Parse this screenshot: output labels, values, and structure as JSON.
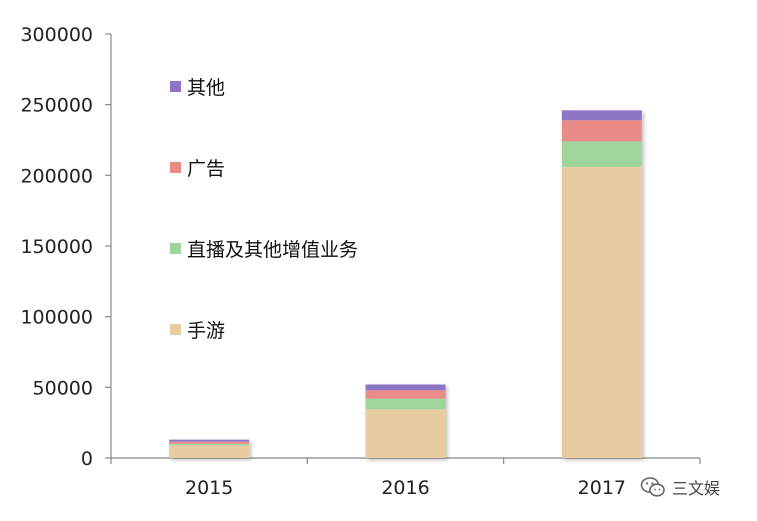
{
  "chart_data": {
    "type": "bar",
    "stacked": true,
    "categories": [
      "2015",
      "2016",
      "2017"
    ],
    "series": [
      {
        "name": "手游",
        "values": [
          9000,
          34500,
          206000
        ],
        "color": "#e8cba0"
      },
      {
        "name": "直播及其他增值业务",
        "values": [
          1000,
          7500,
          18000
        ],
        "color": "#9fd59b"
      },
      {
        "name": "广告",
        "values": [
          1500,
          6000,
          15000
        ],
        "color": "#ea8b87"
      },
      {
        "name": "其他",
        "values": [
          1500,
          4000,
          7000
        ],
        "color": "#8d75c6"
      }
    ],
    "ylim": [
      0,
      300000
    ],
    "yticks": [
      "0",
      "50000",
      "100000",
      "150000",
      "200000",
      "250000",
      "300000"
    ],
    "legend_position": "inside-left",
    "grid": false
  },
  "watermark": {
    "text": "三文娱",
    "icon": "wechat-icon"
  }
}
